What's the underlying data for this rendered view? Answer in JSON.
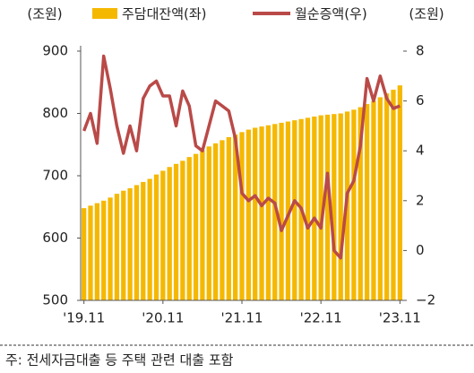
{
  "chart_data": {
    "type": "bar_line",
    "y_unit": "(조원)",
    "y2_unit": "(조원)",
    "categories": [
      "'19.11",
      null,
      null,
      null,
      null,
      null,
      null,
      null,
      null,
      null,
      null,
      null,
      "'20.11",
      null,
      null,
      null,
      null,
      null,
      null,
      null,
      null,
      null,
      null,
      null,
      "'21.11",
      null,
      null,
      null,
      null,
      null,
      null,
      null,
      null,
      null,
      null,
      null,
      "'22.11",
      null,
      null,
      null,
      null,
      null,
      null,
      null,
      null,
      null,
      null,
      null,
      "'23.11"
    ],
    "series": [
      {
        "name": "주담대잔액(좌)",
        "color": "#f5b800",
        "type": "bar",
        "values": [
          648,
          652,
          656,
          660,
          665,
          671,
          676,
          680,
          685,
          690,
          695,
          702,
          708,
          714,
          719,
          724,
          730,
          735,
          741,
          747,
          752,
          757,
          762,
          766,
          770,
          774,
          777,
          779,
          781,
          783,
          785,
          787,
          789,
          791,
          793,
          795,
          797,
          798,
          799,
          800,
          803,
          806,
          810,
          815,
          820,
          826,
          832,
          838,
          845
        ]
      },
      {
        "name": "월순증액(우)",
        "color": "#b94a48",
        "type": "line",
        "axis": "y2",
        "values": [
          4.8,
          5.5,
          4.3,
          7.8,
          6.5,
          5.0,
          3.9,
          5.0,
          4.0,
          6.1,
          6.6,
          6.8,
          6.2,
          6.2,
          5.0,
          6.4,
          5.8,
          4.2,
          4.0,
          5.0,
          6.0,
          5.8,
          5.6,
          4.5,
          2.3,
          2.0,
          2.2,
          1.8,
          2.1,
          1.9,
          0.8,
          1.4,
          2.0,
          1.7,
          0.9,
          1.3,
          0.9,
          3.1,
          0.0,
          -0.3,
          2.3,
          2.8,
          4.2,
          6.9,
          6.0,
          7.0,
          6.1,
          5.7,
          5.8
        ]
      }
    ],
    "ylim": [
      500,
      900
    ],
    "yticks": [
      500,
      600,
      700,
      800,
      900
    ],
    "y2lim": [
      -2,
      8
    ],
    "y2ticks": [
      {
        "value": -2,
        "label": "−2"
      },
      0,
      2,
      4,
      6,
      8
    ],
    "note": "주: 전세자금대출 등 주택 관련 대출 포함"
  }
}
